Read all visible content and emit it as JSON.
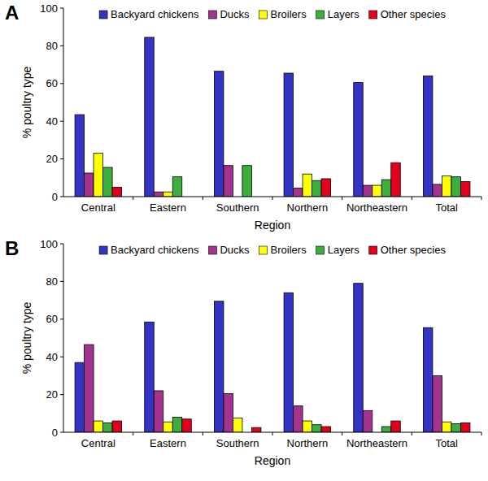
{
  "chart_data": [
    {
      "type": "bar",
      "title": "A",
      "categories": [
        "Central",
        "Eastern",
        "Southern",
        "Northern",
        "Northeastern",
        "Total"
      ],
      "x_label": "Region",
      "y_label": "% poultry type",
      "ylim": [
        0,
        100
      ],
      "yticks": [
        0,
        20,
        40,
        60,
        80,
        100
      ],
      "grid": false,
      "legend": "top",
      "series": [
        {
          "name": "Backyard chickens",
          "color": "#3333c4",
          "values": [
            43.5,
            84.5,
            66.5,
            65.5,
            60.5,
            64
          ]
        },
        {
          "name": "Ducks",
          "color": "#a3338f",
          "values": [
            12.5,
            2.5,
            16.5,
            4.5,
            6,
            6.5
          ]
        },
        {
          "name": "Broilers",
          "color": "#ffff00",
          "values": [
            23,
            2.5,
            0,
            12,
            6,
            11
          ]
        },
        {
          "name": "Layers",
          "color": "#3cae3c",
          "values": [
            15.5,
            10.5,
            16.5,
            8.5,
            9,
            10.5
          ]
        },
        {
          "name": "Other species",
          "color": "#e3001b",
          "values": [
            5,
            0,
            0,
            9.5,
            18,
            8
          ]
        }
      ]
    },
    {
      "type": "bar",
      "title": "B",
      "categories": [
        "Central",
        "Eastern",
        "Southern",
        "Northern",
        "Northeastern",
        "Total"
      ],
      "x_label": "Region",
      "y_label": "% poultry type",
      "ylim": [
        0,
        100
      ],
      "yticks": [
        0,
        20,
        40,
        60,
        80,
        100
      ],
      "grid": false,
      "legend": "top",
      "series": [
        {
          "name": "Backyard chickens",
          "color": "#3333c4",
          "values": [
            37,
            58.5,
            69.5,
            74,
            79,
            55.5
          ]
        },
        {
          "name": "Ducks",
          "color": "#a3338f",
          "values": [
            46.5,
            22,
            20.5,
            14,
            11.5,
            30
          ]
        },
        {
          "name": "Broilers",
          "color": "#ffff00",
          "values": [
            6,
            5.5,
            7.5,
            6,
            0,
            5.5
          ]
        },
        {
          "name": "Layers",
          "color": "#3cae3c",
          "values": [
            5,
            8,
            0,
            4,
            3,
            4.5
          ]
        },
        {
          "name": "Other species",
          "color": "#e3001b",
          "values": [
            6,
            7,
            2.5,
            3,
            6,
            5
          ]
        }
      ]
    }
  ]
}
